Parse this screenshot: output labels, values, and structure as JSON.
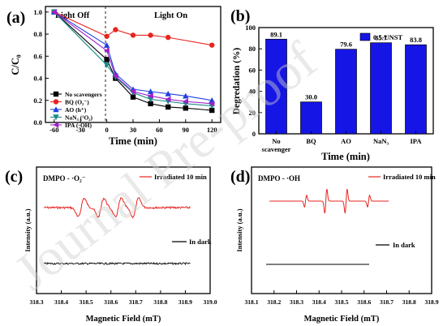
{
  "watermark": "Journal Pre-proof",
  "chart_data": [
    {
      "panel_label": "(a)",
      "type": "line",
      "xlabel": "Time (min)",
      "ylabel": "C/C₀",
      "xlim": [
        -70,
        130
      ],
      "ylim": [
        0,
        1.05
      ],
      "x_ticks": [
        -60,
        -30,
        0,
        30,
        60,
        90,
        120
      ],
      "y_ticks": [
        0.0,
        0.2,
        0.4,
        0.6,
        0.8,
        1.0
      ],
      "region_labels": {
        "left": "Light Off",
        "right": "Light On"
      },
      "legend_position": "bottom-left",
      "series": [
        {
          "name": "No scavengers",
          "color": "#000000",
          "marker": "square",
          "x": [
            -60,
            0,
            10,
            30,
            50,
            70,
            90,
            120
          ],
          "y": [
            1.0,
            0.57,
            0.4,
            0.23,
            0.17,
            0.14,
            0.13,
            0.11
          ]
        },
        {
          "name": "BQ (O₂⁻)",
          "color": "#e8241f",
          "marker": "circle",
          "x": [
            -60,
            0,
            10,
            30,
            50,
            70,
            120
          ],
          "y": [
            1.0,
            0.78,
            0.84,
            0.79,
            0.79,
            0.77,
            0.7
          ]
        },
        {
          "name": "AO (h⁺)",
          "color": "#1f3fe0",
          "marker": "triangle-up",
          "x": [
            -60,
            0,
            10,
            30,
            50,
            70,
            90,
            120
          ],
          "y": [
            1.0,
            0.7,
            0.44,
            0.3,
            0.28,
            0.26,
            0.24,
            0.2
          ]
        },
        {
          "name": "NaN₃ (¹O₂)",
          "color": "#1a8a8a",
          "marker": "triangle-down",
          "x": [
            -60,
            0,
            10,
            30,
            50,
            70,
            90,
            120
          ],
          "y": [
            1.0,
            0.52,
            0.41,
            0.27,
            0.21,
            0.19,
            0.17,
            0.15
          ]
        },
        {
          "name": "IPA (·OH)",
          "color": "#a020c8",
          "marker": "triangle-left",
          "x": [
            -60,
            0,
            10,
            30,
            50,
            70,
            90,
            120
          ],
          "y": [
            1.0,
            0.65,
            0.42,
            0.28,
            0.24,
            0.21,
            0.19,
            0.17
          ]
        }
      ]
    },
    {
      "panel_label": "(b)",
      "type": "bar",
      "xlabel": "Time (min)",
      "ylabel": "Degredation (%)",
      "ylim": [
        0,
        100
      ],
      "y_ticks": [
        0,
        20,
        40,
        60,
        80,
        100
      ],
      "categories": [
        "No\nscavenger",
        "BQ",
        "AO",
        "NaN₃",
        "IPA"
      ],
      "legend_position": "top-right",
      "series": [
        {
          "name": "0.5-UNST",
          "color": "#1515e6",
          "values": [
            89.1,
            30.0,
            79.6,
            85.7,
            83.8
          ],
          "value_labels": [
            "89.1",
            "30.0",
            "79.6",
            "85.7",
            "83.8"
          ]
        }
      ]
    },
    {
      "panel_label": "(c)",
      "type": "line",
      "title": "DMPO - ·O₂⁻",
      "xlabel": "Magnetic Field (mT)",
      "ylabel": "Intensity (a.u.)",
      "xlim": [
        318.3,
        319.0
      ],
      "x_ticks": [
        "318.3",
        "318.4",
        "318.5",
        "318.6",
        "318.7",
        "318.8",
        "318.9",
        "319.0"
      ],
      "legend_position": "inline",
      "series": [
        {
          "name": "Irradiated 10 min",
          "color": "#e8241f",
          "shape": "DMPO-superoxide quartet",
          "line_centers_mT": [
            318.48,
            318.56,
            318.63,
            318.7
          ]
        },
        {
          "name": "In dark",
          "color": "#000000",
          "shape": "flat baseline"
        }
      ]
    },
    {
      "panel_label": "(d)",
      "type": "line",
      "title": "DMPO - ·OH",
      "xlabel": "Magnetic Field (mT)",
      "ylabel": "Intensity (a.u.)",
      "xlim": [
        318.1,
        318.9
      ],
      "x_ticks": [
        "318.1",
        "318.2",
        "318.3",
        "318.4",
        "318.5",
        "318.6",
        "318.7",
        "318.8",
        "318.9"
      ],
      "legend_position": "inline",
      "series": [
        {
          "name": "Irradiated 10 min",
          "color": "#e8241f",
          "shape": "DMPO-OH 1:2:2:1 quartet",
          "line_centers_mT": [
            318.34,
            318.43,
            318.52,
            318.62
          ],
          "relative_heights": [
            1,
            2,
            2,
            1
          ]
        },
        {
          "name": "In dark",
          "color": "#000000",
          "shape": "flat baseline"
        }
      ]
    }
  ]
}
